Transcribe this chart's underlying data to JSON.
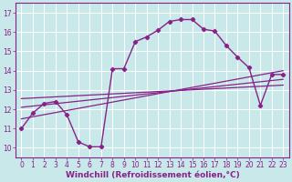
{
  "background_color": "#c8e8ea",
  "line_color": "#882288",
  "grid_color": "#ffffff",
  "xlabel": "Windchill (Refroidissement éolien,°C)",
  "xlabel_fontsize": 6.5,
  "tick_fontsize": 5.5,
  "ylim": [
    9.5,
    17.5
  ],
  "xlim": [
    -0.5,
    23.5
  ],
  "yticks": [
    10,
    11,
    12,
    13,
    14,
    15,
    16,
    17
  ],
  "xticks": [
    0,
    1,
    2,
    3,
    4,
    5,
    6,
    7,
    8,
    9,
    10,
    11,
    12,
    13,
    14,
    15,
    16,
    17,
    18,
    19,
    20,
    21,
    22,
    23
  ],
  "curve_x": [
    0,
    1,
    2,
    3,
    4,
    5,
    6,
    7,
    8,
    9,
    10,
    11,
    12,
    13,
    14,
    15,
    16,
    17,
    18,
    19,
    20,
    21,
    22,
    23
  ],
  "curve_y": [
    11.0,
    11.8,
    12.3,
    12.4,
    11.7,
    10.3,
    10.05,
    10.05,
    14.1,
    14.1,
    15.5,
    15.75,
    16.1,
    16.55,
    16.65,
    16.65,
    16.15,
    16.05,
    15.3,
    14.7,
    14.15,
    12.2,
    13.8,
    13.8
  ],
  "line1_x": [
    0,
    23
  ],
  "line1_y": [
    11.5,
    14.0
  ],
  "line2_x": [
    0,
    23
  ],
  "line2_y": [
    12.1,
    13.55
  ],
  "line3_x": [
    0,
    23
  ],
  "line3_y": [
    12.55,
    13.25
  ]
}
